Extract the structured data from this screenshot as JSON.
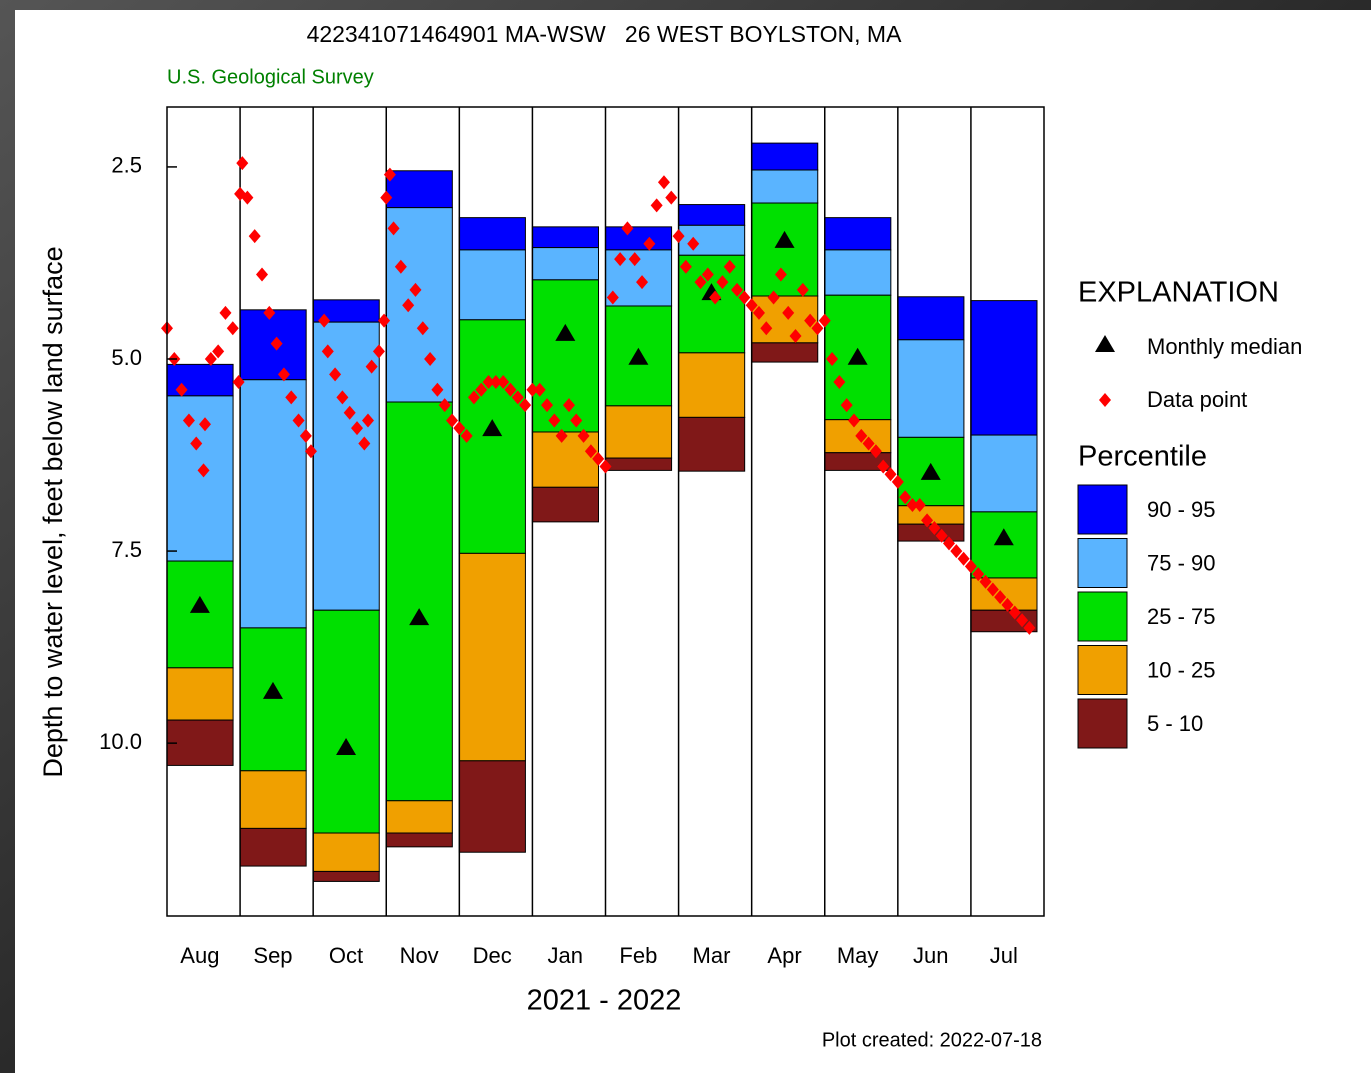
{
  "chart_data": {
    "type": "bar",
    "title": "422341071464901 MA-WSW   26 WEST BOYLSTON, MA",
    "subtitle": "U.S. Geological Survey",
    "ylabel": "Depth to water level, feet below land surface",
    "xlabel": "2021 - 2022",
    "note": "Plot created: 2022-07-18",
    "legend_title": "EXPLANATION",
    "percentile_title": "Percentile",
    "categories": [
      "Aug",
      "Sep",
      "Oct",
      "Nov",
      "Dec",
      "Jan",
      "Feb",
      "Mar",
      "Apr",
      "May",
      "Jun",
      "Jul"
    ],
    "xlim": [
      0,
      12
    ],
    "ylim": [
      1.72,
      12.25
    ],
    "y_inverted": true,
    "yticks": [
      2.5,
      {
        "value": 5,
        "label": "5.0"
      },
      7.5,
      {
        "value": 10,
        "label": "10.0"
      }
    ],
    "series": [
      {
        "name": "90 - 95",
        "color": "#0000ff",
        "low": [
          5.07,
          4.36,
          4.23,
          2.55,
          3.16,
          3.28,
          3.28,
          2.99,
          2.19,
          3.16,
          4.19,
          4.24
        ],
        "high": [
          5.48,
          5.27,
          4.52,
          3.03,
          3.58,
          3.55,
          3.58,
          3.26,
          2.54,
          3.58,
          4.75,
          5.99
        ]
      },
      {
        "name": "75 - 90",
        "color": "#5ab4ff",
        "low": [
          5.48,
          5.27,
          4.52,
          3.03,
          3.58,
          3.55,
          3.58,
          3.26,
          2.54,
          3.58,
          4.75,
          5.99
        ],
        "high": [
          7.63,
          8.5,
          8.27,
          5.56,
          4.49,
          3.97,
          4.31,
          3.65,
          2.97,
          4.17,
          6.02,
          6.99
        ]
      },
      {
        "name": "25 - 75",
        "color": "#00e000",
        "low": [
          7.63,
          8.5,
          8.27,
          5.56,
          4.49,
          3.97,
          4.31,
          3.65,
          2.97,
          4.17,
          6.02,
          6.99
        ],
        "high": [
          9.02,
          10.36,
          11.17,
          10.75,
          7.53,
          5.95,
          5.61,
          4.92,
          4.18,
          5.79,
          6.91,
          7.85
        ]
      },
      {
        "name": "10 - 25",
        "color": "#f0a000",
        "low": [
          9.02,
          10.36,
          11.17,
          10.75,
          7.53,
          5.95,
          5.61,
          4.92,
          4.18,
          5.79,
          6.91,
          7.85
        ],
        "high": [
          9.7,
          11.11,
          11.67,
          11.17,
          10.23,
          6.67,
          6.29,
          5.76,
          4.79,
          6.22,
          7.15,
          8.27
        ]
      },
      {
        "name": "5 - 10",
        "color": "#801818",
        "low": [
          9.7,
          11.11,
          11.67,
          11.17,
          10.23,
          6.67,
          6.29,
          5.76,
          4.79,
          6.22,
          7.15,
          8.27
        ],
        "high": [
          10.29,
          11.6,
          11.8,
          11.35,
          11.42,
          7.12,
          6.45,
          6.46,
          5.04,
          6.45,
          7.37,
          8.55
        ]
      }
    ],
    "median": {
      "name": "Monthly median",
      "color": "#000000",
      "values": [
        8.2,
        9.32,
        10.05,
        8.36,
        5.9,
        4.66,
        4.97,
        4.13,
        3.45,
        4.97,
        6.47,
        7.32
      ]
    },
    "points": {
      "name": "Data point",
      "color": "#ff0000",
      "x": [
        0,
        0.1,
        0.2,
        0.3,
        0.4,
        0.5,
        0.52,
        0.6,
        0.7,
        0.8,
        0.9,
        0.98,
        1.0,
        1.03,
        1.1,
        1.2,
        1.3,
        1.4,
        1.5,
        1.6,
        1.7,
        1.8,
        1.9,
        1.97,
        2.15,
        2.2,
        2.3,
        2.4,
        2.5,
        2.6,
        2.7,
        2.75,
        2.8,
        2.9,
        2.97,
        3.0,
        3.05,
        3.1,
        3.2,
        3.3,
        3.4,
        3.5,
        3.6,
        3.7,
        3.8,
        3.9,
        4.0,
        4.1,
        4.2,
        4.3,
        4.4,
        4.5,
        4.6,
        4.7,
        4.8,
        4.9,
        5.0,
        5.1,
        5.2,
        5.3,
        5.4,
        5.5,
        5.6,
        5.7,
        5.8,
        5.9,
        6.0,
        6.1,
        6.2,
        6.3,
        6.4,
        6.5,
        6.6,
        6.7,
        6.8,
        6.9,
        7.0,
        7.1,
        7.2,
        7.3,
        7.4,
        7.5,
        7.6,
        7.7,
        7.8,
        7.9,
        8.0,
        8.1,
        8.2,
        8.3,
        8.4,
        8.5,
        8.6,
        8.7,
        8.8,
        8.9,
        9.0,
        9.1,
        9.2,
        9.3,
        9.4,
        9.5,
        9.6,
        9.7,
        9.8,
        9.9,
        10.0,
        10.1,
        10.2,
        10.3,
        10.4,
        10.5,
        10.6,
        10.7,
        10.8,
        10.9,
        11.0,
        11.1,
        11.2,
        11.3,
        11.4,
        11.5,
        11.6,
        11.7,
        11.8
      ],
      "values": [
        4.6,
        5.0,
        5.4,
        5.8,
        6.1,
        6.45,
        5.85,
        5.0,
        4.9,
        4.4,
        4.6,
        5.3,
        2.85,
        2.45,
        2.9,
        3.4,
        3.9,
        4.4,
        4.8,
        5.2,
        5.5,
        5.8,
        6.0,
        6.2,
        4.5,
        4.9,
        5.2,
        5.5,
        5.7,
        5.9,
        6.1,
        5.8,
        5.1,
        4.9,
        4.5,
        2.9,
        2.6,
        3.3,
        3.8,
        4.3,
        4.1,
        4.6,
        5.0,
        5.4,
        5.6,
        5.8,
        5.9,
        6.0,
        5.5,
        5.4,
        5.3,
        5.3,
        5.3,
        5.4,
        5.5,
        5.6,
        5.4,
        5.4,
        5.6,
        5.8,
        6.0,
        5.6,
        5.8,
        6.0,
        6.2,
        6.3,
        6.4,
        4.2,
        3.7,
        3.3,
        3.7,
        4.0,
        3.5,
        3.0,
        2.7,
        2.9,
        3.4,
        3.8,
        3.5,
        4.0,
        3.9,
        4.2,
        4.0,
        3.8,
        4.1,
        4.2,
        4.3,
        4.4,
        4.6,
        4.2,
        3.9,
        4.4,
        4.7,
        4.1,
        4.5,
        4.6,
        4.5,
        5.0,
        5.3,
        5.6,
        5.8,
        6.0,
        6.1,
        6.2,
        6.4,
        6.5,
        6.6,
        6.8,
        6.9,
        6.9,
        7.1,
        7.2,
        7.3,
        7.4,
        7.5,
        7.6,
        7.7,
        7.8,
        7.9,
        8.0,
        8.1,
        8.2,
        8.3,
        8.4,
        8.5
      ]
    }
  }
}
